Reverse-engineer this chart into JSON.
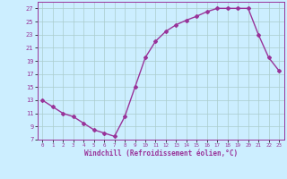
{
  "x": [
    0,
    1,
    2,
    3,
    4,
    5,
    6,
    7,
    8,
    9,
    10,
    11,
    12,
    13,
    14,
    15,
    16,
    17,
    18,
    19,
    20,
    21,
    22,
    23
  ],
  "y": [
    13,
    12,
    11,
    10.5,
    9.5,
    8.5,
    8,
    7.5,
    10.5,
    15,
    19.5,
    22,
    23.5,
    24.5,
    25.2,
    25.8,
    26.5,
    27,
    27,
    27,
    27,
    23,
    19.5,
    17.5
  ],
  "line_color": "#993399",
  "marker": "D",
  "marker_size": 2,
  "bg_color": "#cceeff",
  "grid_color": "#aacccc",
  "xlabel": "Windchill (Refroidissement éolien,°C)",
  "xlabel_color": "#993399",
  "tick_color": "#993399",
  "xlim": [
    -0.5,
    23.5
  ],
  "ylim": [
    7,
    28
  ],
  "yticks": [
    7,
    9,
    11,
    13,
    15,
    17,
    19,
    21,
    23,
    25,
    27
  ],
  "xticks": [
    0,
    1,
    2,
    3,
    4,
    5,
    6,
    7,
    8,
    9,
    10,
    11,
    12,
    13,
    14,
    15,
    16,
    17,
    18,
    19,
    20,
    21,
    22,
    23
  ],
  "line_width": 1.0
}
